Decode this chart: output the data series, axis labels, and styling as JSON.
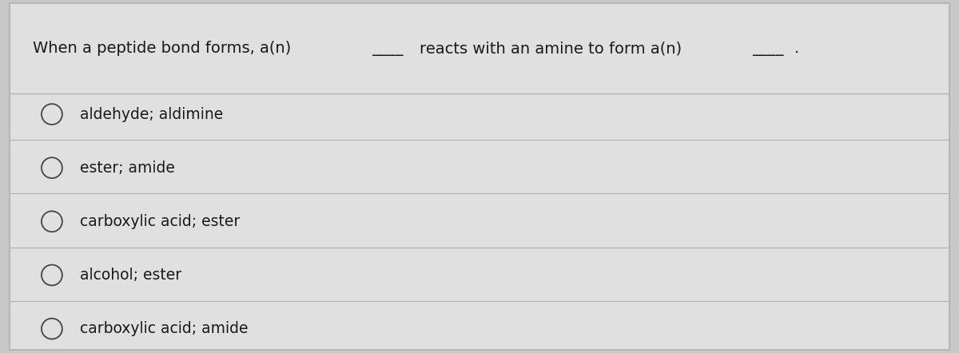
{
  "question_text": "When a peptide bond forms, a(n)      reacts with an amine to form a(n)     .",
  "question_line1": "When a peptide bond forms, a(n) ____  reacts with an amine to form a(n) ____.",
  "options": [
    "aldehyde; aldimine",
    "ester; amide",
    "carboxylic acid; ester",
    "alcohol; ester",
    "carboxylic acid; amide"
  ],
  "bg_color": "#c8c8c8",
  "panel_color": "#e0e0e0",
  "line_color": "#b0b0b0",
  "text_color": "#1a1a1a",
  "circle_edge_color": "#444444",
  "question_fontsize": 14,
  "option_fontsize": 13.5,
  "figsize": [
    12.0,
    4.42
  ],
  "dpi": 100
}
